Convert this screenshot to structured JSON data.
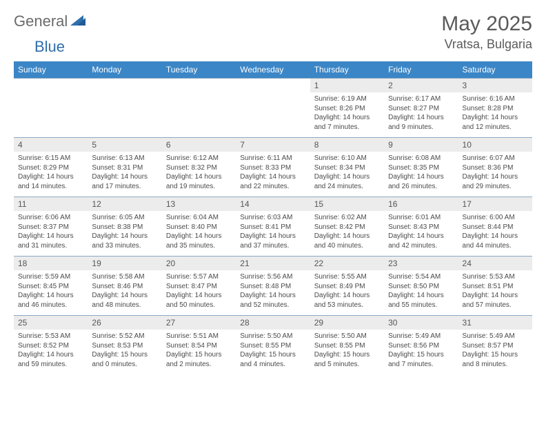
{
  "logo": {
    "general": "General",
    "blue": "Blue"
  },
  "title": {
    "month": "May 2025",
    "location": "Vratsa, Bulgaria"
  },
  "style": {
    "header_bg": "#3b86c6",
    "header_fg": "#ffffff",
    "daynum_bg": "#ececec",
    "daynum_fg": "#555555",
    "body_fg": "#4a4a4a",
    "row_border": "#8aa8c2",
    "page_bg": "#ffffff",
    "logo_gray": "#6b6b6b",
    "logo_blue": "#2f6fab",
    "title_fg": "#5a5a5a"
  },
  "daynames": [
    "Sunday",
    "Monday",
    "Tuesday",
    "Wednesday",
    "Thursday",
    "Friday",
    "Saturday"
  ],
  "weeks": [
    [
      {
        "empty": true
      },
      {
        "empty": true
      },
      {
        "empty": true
      },
      {
        "empty": true
      },
      {
        "n": "1",
        "sr": "6:19 AM",
        "ss": "8:26 PM",
        "dl": "14 hours and 7 minutes."
      },
      {
        "n": "2",
        "sr": "6:17 AM",
        "ss": "8:27 PM",
        "dl": "14 hours and 9 minutes."
      },
      {
        "n": "3",
        "sr": "6:16 AM",
        "ss": "8:28 PM",
        "dl": "14 hours and 12 minutes."
      }
    ],
    [
      {
        "n": "4",
        "sr": "6:15 AM",
        "ss": "8:29 PM",
        "dl": "14 hours and 14 minutes."
      },
      {
        "n": "5",
        "sr": "6:13 AM",
        "ss": "8:31 PM",
        "dl": "14 hours and 17 minutes."
      },
      {
        "n": "6",
        "sr": "6:12 AM",
        "ss": "8:32 PM",
        "dl": "14 hours and 19 minutes."
      },
      {
        "n": "7",
        "sr": "6:11 AM",
        "ss": "8:33 PM",
        "dl": "14 hours and 22 minutes."
      },
      {
        "n": "8",
        "sr": "6:10 AM",
        "ss": "8:34 PM",
        "dl": "14 hours and 24 minutes."
      },
      {
        "n": "9",
        "sr": "6:08 AM",
        "ss": "8:35 PM",
        "dl": "14 hours and 26 minutes."
      },
      {
        "n": "10",
        "sr": "6:07 AM",
        "ss": "8:36 PM",
        "dl": "14 hours and 29 minutes."
      }
    ],
    [
      {
        "n": "11",
        "sr": "6:06 AM",
        "ss": "8:37 PM",
        "dl": "14 hours and 31 minutes."
      },
      {
        "n": "12",
        "sr": "6:05 AM",
        "ss": "8:38 PM",
        "dl": "14 hours and 33 minutes."
      },
      {
        "n": "13",
        "sr": "6:04 AM",
        "ss": "8:40 PM",
        "dl": "14 hours and 35 minutes."
      },
      {
        "n": "14",
        "sr": "6:03 AM",
        "ss": "8:41 PM",
        "dl": "14 hours and 37 minutes."
      },
      {
        "n": "15",
        "sr": "6:02 AM",
        "ss": "8:42 PM",
        "dl": "14 hours and 40 minutes."
      },
      {
        "n": "16",
        "sr": "6:01 AM",
        "ss": "8:43 PM",
        "dl": "14 hours and 42 minutes."
      },
      {
        "n": "17",
        "sr": "6:00 AM",
        "ss": "8:44 PM",
        "dl": "14 hours and 44 minutes."
      }
    ],
    [
      {
        "n": "18",
        "sr": "5:59 AM",
        "ss": "8:45 PM",
        "dl": "14 hours and 46 minutes."
      },
      {
        "n": "19",
        "sr": "5:58 AM",
        "ss": "8:46 PM",
        "dl": "14 hours and 48 minutes."
      },
      {
        "n": "20",
        "sr": "5:57 AM",
        "ss": "8:47 PM",
        "dl": "14 hours and 50 minutes."
      },
      {
        "n": "21",
        "sr": "5:56 AM",
        "ss": "8:48 PM",
        "dl": "14 hours and 52 minutes."
      },
      {
        "n": "22",
        "sr": "5:55 AM",
        "ss": "8:49 PM",
        "dl": "14 hours and 53 minutes."
      },
      {
        "n": "23",
        "sr": "5:54 AM",
        "ss": "8:50 PM",
        "dl": "14 hours and 55 minutes."
      },
      {
        "n": "24",
        "sr": "5:53 AM",
        "ss": "8:51 PM",
        "dl": "14 hours and 57 minutes."
      }
    ],
    [
      {
        "n": "25",
        "sr": "5:53 AM",
        "ss": "8:52 PM",
        "dl": "14 hours and 59 minutes."
      },
      {
        "n": "26",
        "sr": "5:52 AM",
        "ss": "8:53 PM",
        "dl": "15 hours and 0 minutes."
      },
      {
        "n": "27",
        "sr": "5:51 AM",
        "ss": "8:54 PM",
        "dl": "15 hours and 2 minutes."
      },
      {
        "n": "28",
        "sr": "5:50 AM",
        "ss": "8:55 PM",
        "dl": "15 hours and 4 minutes."
      },
      {
        "n": "29",
        "sr": "5:50 AM",
        "ss": "8:55 PM",
        "dl": "15 hours and 5 minutes."
      },
      {
        "n": "30",
        "sr": "5:49 AM",
        "ss": "8:56 PM",
        "dl": "15 hours and 7 minutes."
      },
      {
        "n": "31",
        "sr": "5:49 AM",
        "ss": "8:57 PM",
        "dl": "15 hours and 8 minutes."
      }
    ]
  ],
  "labels": {
    "sunrise": "Sunrise: ",
    "sunset": "Sunset: ",
    "daylight": "Daylight: "
  }
}
